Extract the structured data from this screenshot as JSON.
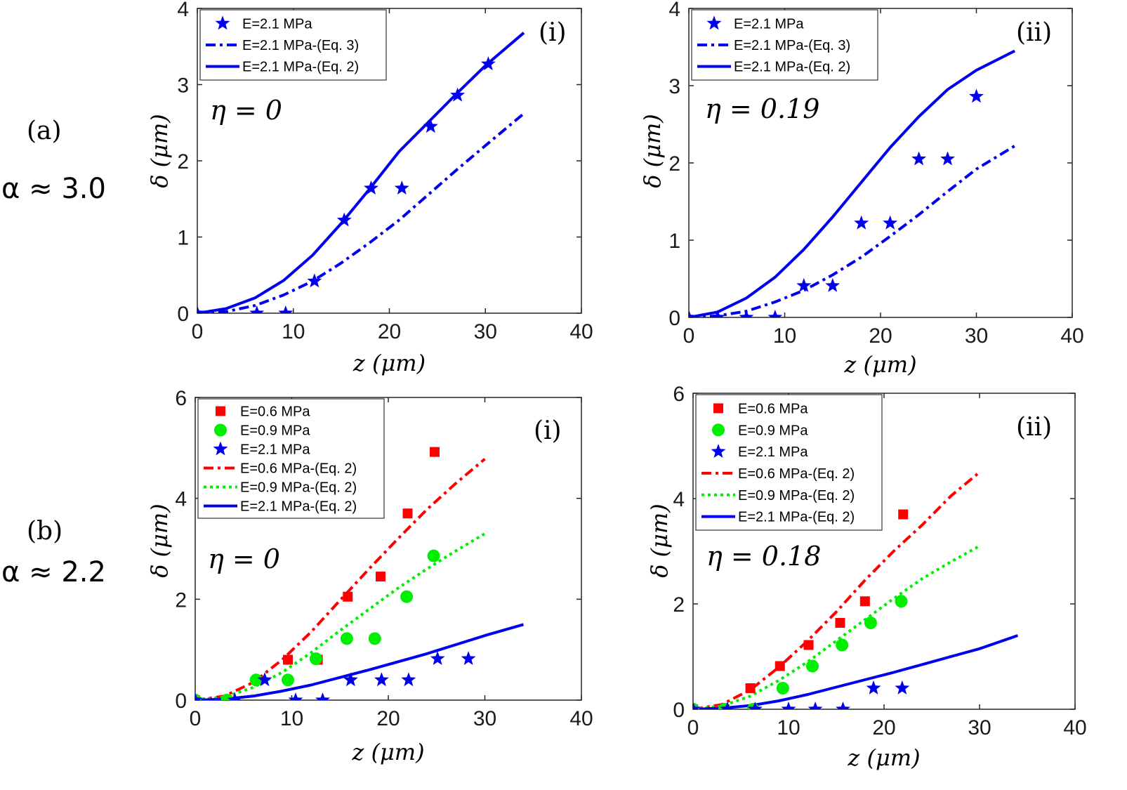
{
  "row_labels": [
    {
      "letter": "(a)",
      "alpha": "α ≈ 3.0"
    },
    {
      "letter": "(b)",
      "alpha": "α ≈ 2.2"
    }
  ],
  "colors": {
    "blue": "#0000ee",
    "red": "#ff0000",
    "green": "#00ee00",
    "axis": "#262626"
  },
  "chart_data": [
    {
      "type": "scatter",
      "panel_label": "(i)",
      "annotation": "η = 0",
      "xlabel": "z (μm)",
      "ylabel": "δ (μm)",
      "xlim": [
        0,
        40
      ],
      "ylim": [
        0,
        4
      ],
      "xticks": [
        0,
        10,
        20,
        30,
        40
      ],
      "yticks": [
        0,
        1,
        2,
        3,
        4
      ],
      "legend_position": "top-left",
      "series": [
        {
          "name": "E=2.1 MPa",
          "kind": "scatter",
          "marker": "star",
          "color": "#0000ee",
          "x": [
            0,
            6.2,
            9.2,
            12.2,
            15.3,
            18.1,
            21.3,
            24.3,
            27.1,
            30.3
          ],
          "y": [
            0,
            0,
            0,
            0.42,
            1.22,
            1.64,
            1.64,
            2.45,
            2.86,
            3.27
          ]
        },
        {
          "name": "E=2.1 MPa-(Eq. 3)",
          "kind": "line",
          "style": "dashdot",
          "color": "#0000ee",
          "x": [
            0,
            3,
            6,
            9,
            12,
            15,
            18,
            21,
            24,
            27,
            30,
            34
          ],
          "y": [
            0,
            0.02,
            0.1,
            0.24,
            0.42,
            0.66,
            0.93,
            1.22,
            1.55,
            1.88,
            2.2,
            2.62
          ]
        },
        {
          "name": "E=2.1 MPa-(Eq. 2)",
          "kind": "line",
          "style": "solid",
          "color": "#0000ee",
          "x": [
            0,
            3,
            6,
            9,
            12,
            15,
            18,
            21,
            24,
            27,
            30,
            34
          ],
          "y": [
            0,
            0.06,
            0.2,
            0.43,
            0.76,
            1.18,
            1.64,
            2.12,
            2.5,
            2.88,
            3.25,
            3.68
          ]
        }
      ]
    },
    {
      "type": "scatter",
      "panel_label": "(ii)",
      "annotation": "η = 0.19",
      "xlabel": "z (μm)",
      "ylabel": "δ (μm)",
      "xlim": [
        0,
        40
      ],
      "ylim": [
        0,
        4
      ],
      "xticks": [
        0,
        10,
        20,
        30,
        40
      ],
      "yticks": [
        0,
        1,
        2,
        3,
        4
      ],
      "legend_position": "top-left",
      "series": [
        {
          "name": "E=2.1 MPa",
          "kind": "scatter",
          "marker": "star",
          "color": "#0000ee",
          "x": [
            0,
            3,
            6,
            9,
            12,
            15,
            18,
            21,
            24,
            27,
            30
          ],
          "y": [
            0,
            0,
            0,
            0,
            0.41,
            0.41,
            1.22,
            1.22,
            2.05,
            2.05,
            2.86
          ]
        },
        {
          "name": "E=2.1 MPa-(Eq. 3)",
          "kind": "line",
          "style": "dashdot",
          "color": "#0000ee",
          "x": [
            0,
            3,
            6,
            9,
            12,
            15,
            18,
            21,
            24,
            27,
            30,
            34
          ],
          "y": [
            0,
            0.02,
            0.08,
            0.2,
            0.35,
            0.55,
            0.78,
            1.05,
            1.33,
            1.63,
            1.92,
            2.22
          ]
        },
        {
          "name": "E=2.1 MPa-(Eq. 2)",
          "kind": "line",
          "style": "solid",
          "color": "#0000ee",
          "x": [
            0,
            3,
            6,
            9,
            12,
            15,
            18,
            21,
            24,
            27,
            30,
            34
          ],
          "y": [
            0,
            0.07,
            0.25,
            0.52,
            0.88,
            1.3,
            1.75,
            2.2,
            2.6,
            2.95,
            3.2,
            3.45
          ]
        }
      ]
    },
    {
      "type": "scatter",
      "panel_label": "(i)",
      "annotation": "η = 0",
      "xlabel": "z (μm)",
      "ylabel": "δ (μm)",
      "xlim": [
        0,
        40
      ],
      "ylim": [
        0,
        6
      ],
      "xticks": [
        0,
        10,
        20,
        30,
        40
      ],
      "yticks": [
        0,
        2,
        4,
        6
      ],
      "legend_position": "top-left",
      "series": [
        {
          "name": "E=0.6 MPa",
          "kind": "scatter",
          "marker": "square",
          "color": "#ff0000",
          "x": [
            0,
            3.3,
            6.5,
            9.6,
            12.7,
            15.8,
            19.2,
            22,
            24.8
          ],
          "y": [
            0,
            0,
            0.4,
            0.8,
            0.8,
            2.05,
            2.45,
            3.7,
            4.92
          ]
        },
        {
          "name": "E=0.9 MPa",
          "kind": "scatter",
          "marker": "circle",
          "color": "#00ee00",
          "x": [
            0,
            3.3,
            6.3,
            9.6,
            12.5,
            15.7,
            18.6,
            21.9,
            24.7
          ],
          "y": [
            0,
            0,
            0.4,
            0.4,
            0.82,
            1.22,
            1.22,
            2.05,
            2.86
          ]
        },
        {
          "name": "E=2.1 MPa",
          "kind": "scatter",
          "marker": "star",
          "color": "#0000ee",
          "x": [
            0,
            4.1,
            7.2,
            10.4,
            13.2,
            16.1,
            19.3,
            22.1,
            25.1,
            28.3
          ],
          "y": [
            0,
            0,
            0.4,
            0,
            0,
            0.4,
            0.4,
            0.4,
            0.82,
            0.82
          ]
        },
        {
          "name": "E=0.6 MPa-(Eq. 2)",
          "kind": "line",
          "style": "dashdot",
          "color": "#ff0000",
          "x": [
            0,
            3,
            6,
            9,
            12,
            15,
            18,
            21,
            24,
            27,
            30
          ],
          "y": [
            0,
            0.08,
            0.35,
            0.8,
            1.35,
            1.98,
            2.6,
            3.2,
            3.78,
            4.3,
            4.78
          ]
        },
        {
          "name": "E=0.9 MPa-(Eq. 2)",
          "kind": "line",
          "style": "dotted",
          "color": "#00ee00",
          "x": [
            0,
            3,
            6,
            9,
            12,
            15,
            18,
            21,
            24,
            27,
            30
          ],
          "y": [
            0,
            0.06,
            0.25,
            0.55,
            0.94,
            1.38,
            1.8,
            2.22,
            2.6,
            2.96,
            3.3
          ]
        },
        {
          "name": "E=2.1 MPa-(Eq. 2)",
          "kind": "line",
          "style": "solid",
          "color": "#0000ee",
          "x": [
            0,
            3,
            6,
            9,
            12,
            15,
            18,
            21,
            24,
            27,
            30,
            34
          ],
          "y": [
            0,
            0.02,
            0.08,
            0.18,
            0.3,
            0.45,
            0.6,
            0.76,
            0.92,
            1.1,
            1.28,
            1.5
          ]
        }
      ]
    },
    {
      "type": "scatter",
      "panel_label": "(ii)",
      "annotation": "η = 0.18",
      "xlabel": "z (μm)",
      "ylabel": "δ (μm)",
      "xlim": [
        0,
        40
      ],
      "ylim": [
        0,
        6
      ],
      "xticks": [
        0,
        10,
        20,
        30,
        40
      ],
      "yticks": [
        0,
        2,
        4,
        6
      ],
      "legend_position": "top-left",
      "series": [
        {
          "name": "E=0.6 MPa",
          "kind": "scatter",
          "marker": "square",
          "color": "#ff0000",
          "x": [
            0,
            3.3,
            6,
            9.1,
            12.1,
            15.4,
            18,
            22
          ],
          "y": [
            0,
            0,
            0.4,
            0.82,
            1.22,
            1.64,
            2.05,
            3.7
          ]
        },
        {
          "name": "E=0.9 MPa",
          "kind": "scatter",
          "marker": "circle",
          "color": "#00ee00",
          "x": [
            0,
            3.3,
            6.3,
            9.4,
            12.5,
            15.6,
            18.6,
            21.8
          ],
          "y": [
            0,
            0,
            0,
            0.4,
            0.82,
            1.22,
            1.64,
            2.05
          ]
        },
        {
          "name": "E=2.1 MPa",
          "kind": "scatter",
          "marker": "star",
          "color": "#0000ee",
          "x": [
            0,
            3.6,
            6.5,
            10,
            12.8,
            15.7,
            18.9,
            21.9
          ],
          "y": [
            0,
            0,
            0,
            0,
            0,
            0,
            0.4,
            0.4
          ]
        },
        {
          "name": "E=0.6 MPa-(Eq. 2)",
          "kind": "line",
          "style": "dashdot",
          "color": "#ff0000",
          "x": [
            0,
            3,
            6,
            9,
            12,
            15,
            18,
            21,
            24,
            27,
            30
          ],
          "y": [
            0,
            0.09,
            0.37,
            0.8,
            1.3,
            1.85,
            2.45,
            3.0,
            3.5,
            4.05,
            4.5
          ]
        },
        {
          "name": "E=0.9 MPa-(Eq. 2)",
          "kind": "line",
          "style": "dotted",
          "color": "#00ee00",
          "x": [
            0,
            3,
            6,
            9,
            12,
            15,
            18,
            21,
            24,
            27,
            30
          ],
          "y": [
            0,
            0.06,
            0.25,
            0.55,
            0.9,
            1.3,
            1.7,
            2.1,
            2.48,
            2.8,
            3.1
          ]
        },
        {
          "name": "E=2.1 MPa-(Eq. 2)",
          "kind": "line",
          "style": "solid",
          "color": "#0000ee",
          "x": [
            0,
            3,
            6,
            9,
            12,
            15,
            18,
            21,
            24,
            27,
            30,
            34
          ],
          "y": [
            0,
            0.02,
            0.07,
            0.16,
            0.28,
            0.42,
            0.56,
            0.7,
            0.85,
            1.0,
            1.15,
            1.4
          ]
        }
      ]
    }
  ]
}
